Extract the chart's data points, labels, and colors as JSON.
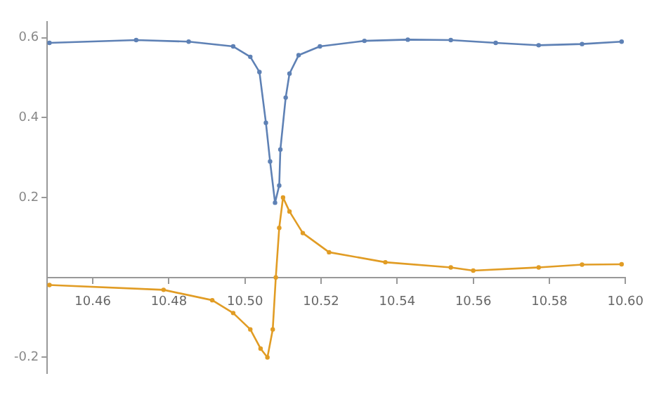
{
  "chart_data": {
    "type": "line",
    "xlim": [
      10.448,
      10.6
    ],
    "ylim": [
      -0.24,
      0.64
    ],
    "xticks": [
      {
        "value": 10.46,
        "label": "10.46"
      },
      {
        "value": 10.48,
        "label": "10.48"
      },
      {
        "value": 10.5,
        "label": "10.50"
      },
      {
        "value": 10.52,
        "label": "10.52"
      },
      {
        "value": 10.54,
        "label": "10.54"
      },
      {
        "value": 10.56,
        "label": "10.56"
      },
      {
        "value": 10.58,
        "label": "10.58"
      },
      {
        "value": 10.6,
        "label": "10.60"
      }
    ],
    "yticks": [
      -0.2,
      0.2,
      0.4,
      0.6
    ],
    "grid": false,
    "legend": false,
    "marker": "circle",
    "line_style": "solid",
    "series": [
      {
        "color": "#5e81b5",
        "x": [
          10.4486,
          10.4714,
          10.4852,
          10.4969,
          10.5014,
          10.5038,
          10.5055,
          10.5066,
          10.5079,
          10.509,
          10.5093,
          10.5107,
          10.5117,
          10.5141,
          10.5197,
          10.5314,
          10.5428,
          10.5541,
          10.5659,
          10.5772,
          10.5886,
          10.599
        ],
        "values": [
          0.587,
          0.594,
          0.59,
          0.578,
          0.552,
          0.514,
          0.387,
          0.29,
          0.187,
          0.23,
          0.32,
          0.45,
          0.51,
          0.556,
          0.578,
          0.592,
          0.595,
          0.594,
          0.587,
          0.581,
          0.584,
          0.59
        ]
      },
      {
        "color": "#e19c24",
        "x": [
          10.4486,
          10.4786,
          10.4914,
          10.4969,
          10.5014,
          10.5041,
          10.5059,
          10.5073,
          10.5081,
          10.509,
          10.51,
          10.5117,
          10.5152,
          10.5221,
          10.5369,
          10.5541,
          10.56,
          10.5772,
          10.5886,
          10.599
        ],
        "values": [
          -0.019,
          -0.031,
          -0.057,
          -0.089,
          -0.13,
          -0.178,
          -0.2,
          -0.13,
          0.0,
          0.124,
          0.2,
          0.165,
          0.111,
          0.063,
          0.038,
          0.025,
          0.017,
          0.025,
          0.032,
          0.033
        ]
      }
    ]
  }
}
